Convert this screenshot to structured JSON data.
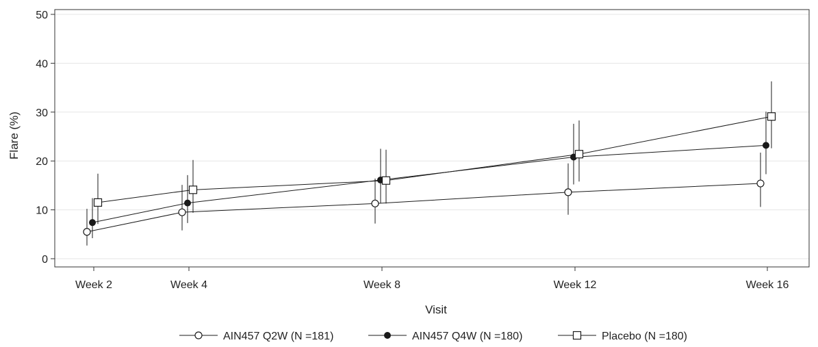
{
  "chart_data": {
    "type": "line",
    "title": "",
    "xlabel": "Visit",
    "ylabel": "Flare (%)",
    "categories": [
      "Week 2",
      "Week 4",
      "Week 8",
      "Week 12",
      "Week 16"
    ],
    "ylim": [
      0,
      50
    ],
    "yticks": [
      "0",
      "10",
      "20",
      "30",
      "40",
      "50"
    ],
    "grid": "horizontal",
    "legend_position": "bottom",
    "series": [
      {
        "name": "AIN457 Q2W (N =181)",
        "marker": "open-circle",
        "values": [
          5.5,
          9.5,
          11.3,
          13.6,
          15.4
        ],
        "ci_lower": [
          2.7,
          5.8,
          7.2,
          9.0,
          10.6
        ],
        "ci_upper": [
          10.2,
          15.1,
          16.4,
          19.5,
          21.7
        ]
      },
      {
        "name": "AIN457 Q4W (N =180)",
        "marker": "filled-circle",
        "values": [
          7.4,
          11.4,
          16.1,
          20.8,
          23.2
        ],
        "ci_lower": [
          4.2,
          7.3,
          11.4,
          15.2,
          17.3
        ],
        "ci_upper": [
          12.4,
          17.1,
          22.5,
          27.6,
          30.1
        ]
      },
      {
        "name": "Placebo (N =180)",
        "marker": "open-square",
        "values": [
          11.5,
          14.1,
          16.0,
          21.4,
          29.1
        ],
        "ci_lower": [
          7.1,
          9.4,
          11.3,
          15.8,
          22.6
        ],
        "ci_upper": [
          17.4,
          20.2,
          22.3,
          28.3,
          36.3
        ]
      }
    ]
  },
  "colors": {
    "line": "#1a1a1a",
    "grid": "#e5e5e5",
    "axis": "#333333",
    "background": "#ffffff"
  }
}
